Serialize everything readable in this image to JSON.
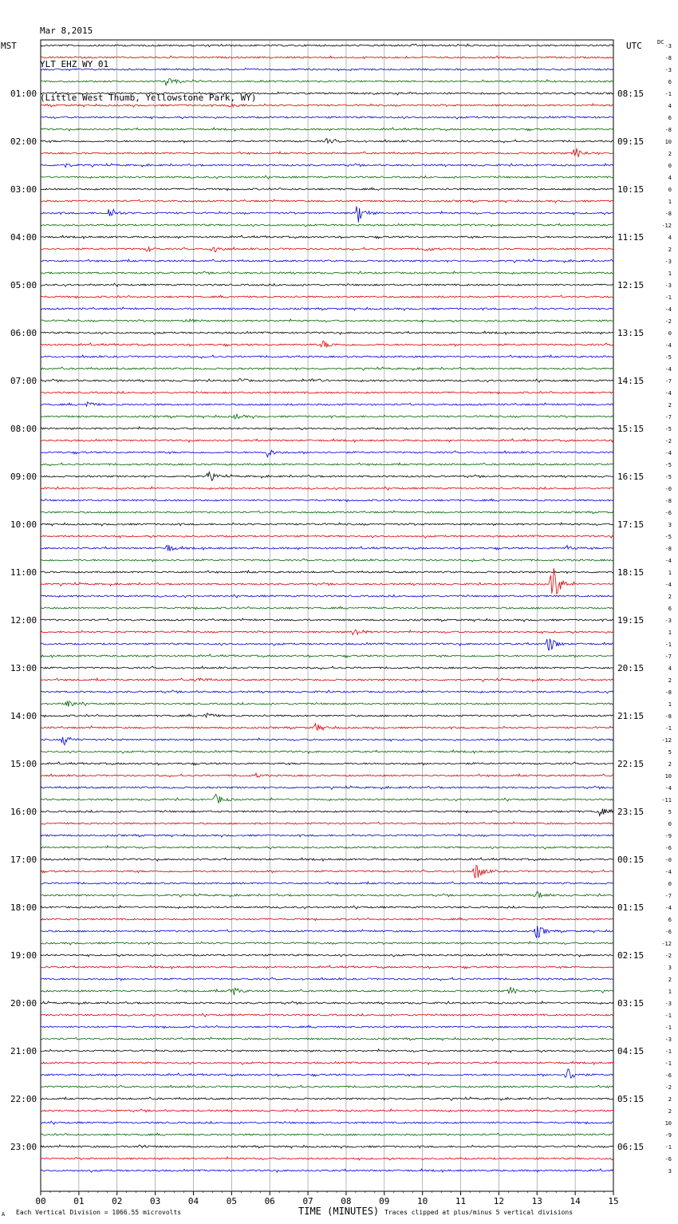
{
  "header": {
    "date": "Mar 8,2015",
    "station": "YLT EHZ WY 01",
    "location": "(Little West Thumb, Yellowstone Park, WY)"
  },
  "labels": {
    "left_tz": "MST",
    "right_tz": "UTC",
    "dc": "DC"
  },
  "footer": {
    "mark": "A",
    "scale": "Each Vertical Division = 1066.55 microvolts",
    "xlabel": "TIME (MINUTES)",
    "clip_note": "Traces clipped at plus/minus 5 vertical divisions"
  },
  "colors": {
    "trace_cycle": [
      "#000000",
      "#dd0000",
      "#0000dd",
      "#006600"
    ],
    "grid": "#888888"
  },
  "chart_data": {
    "type": "line",
    "subtype": "helicorder",
    "x_ticks": [
      "00",
      "01",
      "02",
      "03",
      "04",
      "05",
      "06",
      "07",
      "08",
      "09",
      "10",
      "11",
      "12",
      "13",
      "14",
      "15"
    ],
    "xlim": [
      0,
      15
    ],
    "row_minutes": 15,
    "left_hour_labels": [
      "01:00",
      "02:00",
      "03:00",
      "04:00",
      "05:00",
      "06:00",
      "07:00",
      "08:00",
      "09:00",
      "10:00",
      "11:00",
      "12:00",
      "13:00",
      "14:00",
      "15:00",
      "16:00",
      "17:00",
      "18:00",
      "19:00",
      "20:00",
      "21:00",
      "22:00",
      "23:00"
    ],
    "right_hour_labels": [
      "08:15",
      "09:15",
      "10:15",
      "11:15",
      "12:15",
      "13:15",
      "14:15",
      "15:15",
      "16:15",
      "17:15",
      "18:15",
      "19:15",
      "20:15",
      "21:15",
      "22:15",
      "23:15",
      "00:15",
      "01:15",
      "02:15",
      "03:15",
      "04:15",
      "05:15",
      "06:15"
    ],
    "dc_offsets": [
      "-3",
      "-8",
      "-3",
      "6",
      "-1",
      "4",
      "6",
      "-8",
      "10",
      "2",
      "0",
      "4",
      "0",
      "1",
      "-8",
      "-12",
      "4",
      "2",
      "-3",
      "1",
      "-3",
      "-1",
      "-4",
      "-2",
      "0",
      "-4",
      "-5",
      "-4",
      "-7",
      "-4",
      "2",
      "-7",
      "-5",
      "-2",
      "-4",
      "-5",
      "-5",
      "-0",
      "-8",
      "-6",
      "3",
      "-5",
      "-8",
      "-4",
      "1",
      "-4",
      "2",
      "6",
      "-3",
      "1",
      "-1",
      "-7",
      "4",
      "2",
      "-8",
      "1",
      "-8",
      "-1",
      "-12",
      "5",
      "2",
      "10",
      "-4",
      "-11",
      "5",
      "0",
      "-9",
      "-6",
      "-0",
      "-4",
      "0",
      "-7",
      "-4",
      "6",
      "-6",
      "-12",
      "-2",
      "3",
      "2",
      "1",
      "-3",
      "-1",
      "-1",
      "-3",
      "-1",
      "-1",
      "-6",
      "-2",
      "2",
      "2",
      "10",
      "-9",
      "-1",
      "-6",
      "3"
    ],
    "events": [
      {
        "row": 3,
        "minute": 3.3,
        "amp": 7
      },
      {
        "row": 5,
        "minute": 5.0,
        "amp": 4
      },
      {
        "row": 8,
        "minute": 7.5,
        "amp": 3
      },
      {
        "row": 9,
        "minute": 14.0,
        "amp": 8
      },
      {
        "row": 10,
        "minute": 0.6,
        "amp": 3
      },
      {
        "row": 14,
        "minute": 1.8,
        "amp": 8
      },
      {
        "row": 14,
        "minute": 8.3,
        "amp": 14
      },
      {
        "row": 17,
        "minute": 4.5,
        "amp": 7
      },
      {
        "row": 17,
        "minute": 2.8,
        "amp": 3
      },
      {
        "row": 17,
        "minute": 10.1,
        "amp": 3
      },
      {
        "row": 23,
        "minute": 3.8,
        "amp": 3
      },
      {
        "row": 25,
        "minute": 7.4,
        "amp": 5
      },
      {
        "row": 28,
        "minute": 5.2,
        "amp": 3
      },
      {
        "row": 28,
        "minute": 7.1,
        "amp": 4
      },
      {
        "row": 30,
        "minute": 1.2,
        "amp": 4
      },
      {
        "row": 31,
        "minute": 5.1,
        "amp": 3
      },
      {
        "row": 34,
        "minute": 5.9,
        "amp": 7
      },
      {
        "row": 36,
        "minute": 4.4,
        "amp": 6
      },
      {
        "row": 42,
        "minute": 3.3,
        "amp": 6
      },
      {
        "row": 42,
        "minute": 13.8,
        "amp": 3
      },
      {
        "row": 45,
        "minute": 13.4,
        "amp": 30
      },
      {
        "row": 49,
        "minute": 8.2,
        "amp": 7
      },
      {
        "row": 50,
        "minute": 13.3,
        "amp": 12
      },
      {
        "row": 53,
        "minute": 4.1,
        "amp": 4
      },
      {
        "row": 55,
        "minute": 0.7,
        "amp": 5
      },
      {
        "row": 56,
        "minute": 4.3,
        "amp": 5
      },
      {
        "row": 57,
        "minute": 7.2,
        "amp": 5
      },
      {
        "row": 58,
        "minute": 0.6,
        "amp": 7
      },
      {
        "row": 61,
        "minute": 5.6,
        "amp": 3
      },
      {
        "row": 63,
        "minute": 4.6,
        "amp": 7
      },
      {
        "row": 64,
        "minute": 14.6,
        "amp": 7
      },
      {
        "row": 69,
        "minute": 11.4,
        "amp": 12
      },
      {
        "row": 71,
        "minute": 13.0,
        "amp": 6
      },
      {
        "row": 74,
        "minute": 13.0,
        "amp": 10
      },
      {
        "row": 79,
        "minute": 5.0,
        "amp": 7
      },
      {
        "row": 79,
        "minute": 12.3,
        "amp": 5
      },
      {
        "row": 86,
        "minute": 13.8,
        "amp": 10
      },
      {
        "row": 92,
        "minute": 2.6,
        "amp": 3
      },
      {
        "row": 95,
        "minute": 4.3,
        "amp": 9
      }
    ]
  }
}
